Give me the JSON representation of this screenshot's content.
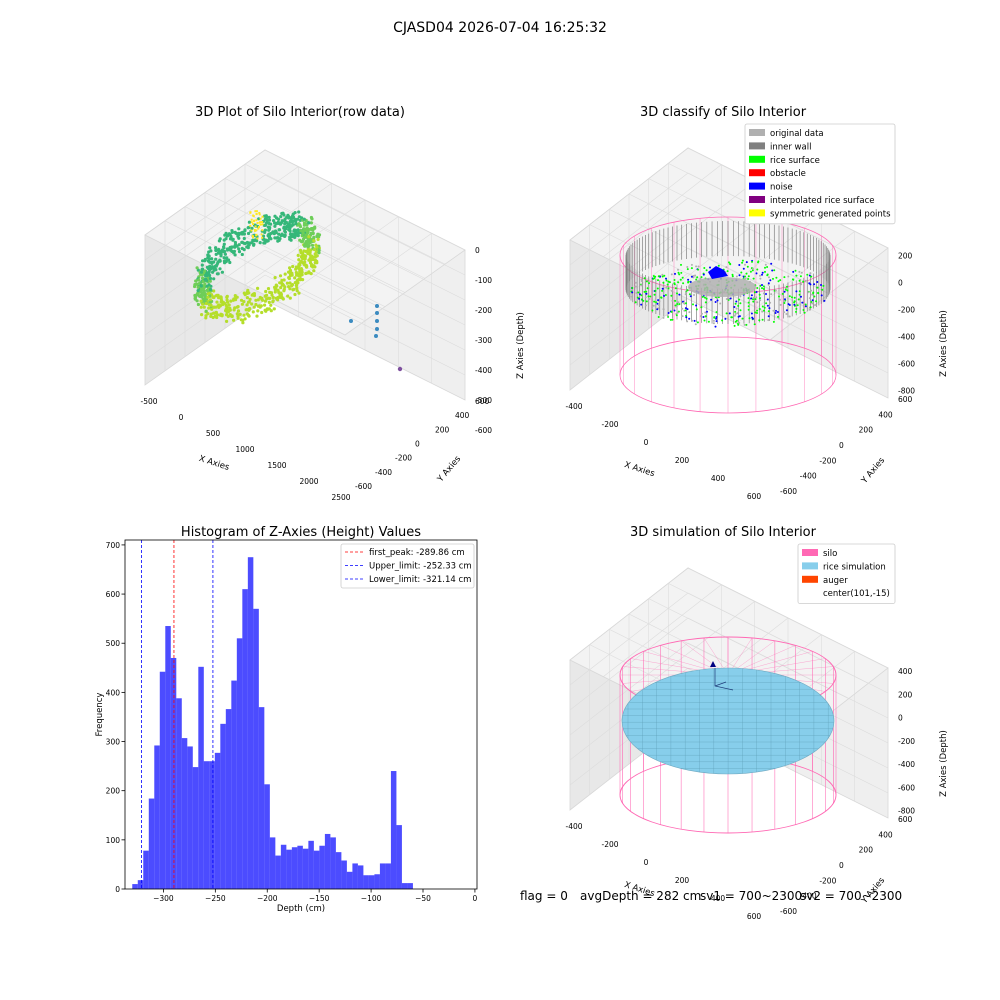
{
  "suptitle": "CJASD04 2026-07-04 16:25:32",
  "colors": {
    "hist_bar": "#0000ff",
    "first_peak_line": "#ff0000",
    "limit_line": "#0000ff",
    "silo": "#ff69b4",
    "rice_simulation": "#87ceeb",
    "auger": "#ff4500",
    "original_data": "#b0b0b0",
    "inner_wall": "#808080",
    "rice_surface": "#00ff00",
    "obstacle": "#ff0000",
    "noise": "#0000ff",
    "interpolated_rice_surface": "#800080",
    "symmetric_generated_points": "#ffff00"
  },
  "footer": {
    "flag": "flag = 0",
    "avg_depth": "avgDepth = 282 cm",
    "sv1": "sv1 = 700~2300",
    "sv2": "sv2 = 700~2300"
  },
  "chart_data": [
    {
      "type": "scatter",
      "title": "3D Plot of Silo Interior(row data)",
      "xlabel": "X Axies",
      "ylabel": "Y Axies",
      "zlabel": "Z Axies (Depth)",
      "x_ticks": [
        "-500",
        "0",
        "500",
        "1000",
        "1500",
        "2000",
        "2500"
      ],
      "y_ticks": [
        "-600",
        "-400",
        "-200",
        "0",
        "200",
        "400",
        "600"
      ],
      "z_ticks": [
        "0",
        "-100",
        "-200",
        "-300",
        "-400",
        "-500",
        "-600"
      ],
      "xlim": [
        -600,
        2500
      ],
      "ylim": [
        -650,
        650
      ],
      "zlim": [
        -650,
        0
      ]
    },
    {
      "type": "scatter",
      "title": "3D classify of Silo Interior",
      "xlabel": "X Axies",
      "ylabel": "Y Axies",
      "zlabel": "Z Axies (Depth)",
      "x_ticks": [
        "-400",
        "-200",
        "0",
        "200",
        "400",
        "600"
      ],
      "y_ticks": [
        "-600",
        "-400",
        "-200",
        "0",
        "200",
        "400",
        "600"
      ],
      "z_ticks": [
        "200",
        "0",
        "-200",
        "-400",
        "-600",
        "-800"
      ],
      "legend": {
        "location": "top-right",
        "entries": [
          {
            "label": "original data",
            "color_key": "original_data"
          },
          {
            "label": "inner wall",
            "color_key": "inner_wall"
          },
          {
            "label": "rice surface",
            "color_key": "rice_surface"
          },
          {
            "label": "obstacle",
            "color_key": "obstacle"
          },
          {
            "label": "noise",
            "color_key": "noise"
          },
          {
            "label": "interpolated rice surface",
            "color_key": "interpolated_rice_surface"
          },
          {
            "label": "symmetric generated points",
            "color_key": "symmetric_generated_points"
          }
        ]
      }
    },
    {
      "type": "bar",
      "title": "Histogram of Z-Axies (Height) Values",
      "xlabel": "Depth (cm)",
      "ylabel": "Frequency",
      "xlim": [
        -337,
        2
      ],
      "ylim": [
        0,
        710
      ],
      "x_ticks": [
        -300,
        -250,
        -200,
        -150,
        -100,
        -50,
        0
      ],
      "y_ticks": [
        0,
        100,
        200,
        300,
        400,
        500,
        600,
        700
      ],
      "bin_start": -330,
      "bin_width": 5.3,
      "values": [
        10,
        18,
        78,
        184,
        292,
        442,
        535,
        470,
        388,
        307,
        290,
        248,
        452,
        260,
        260,
        277,
        336,
        366,
        424,
        510,
        610,
        675,
        570,
        370,
        213,
        105,
        68,
        90,
        80,
        85,
        88,
        82,
        98,
        78,
        88,
        112,
        105,
        75,
        58,
        35,
        52,
        48,
        28,
        28,
        30,
        52,
        52,
        240,
        130,
        12,
        12
      ],
      "vlines": [
        {
          "x": -289.86,
          "label": "first_peak: -289.86 cm",
          "color_key": "first_peak_line"
        },
        {
          "x": -252.33,
          "label": "Upper_limit: -252.33 cm",
          "color_key": "limit_line"
        },
        {
          "x": -321.14,
          "label": "Lower_limit: -321.14 cm",
          "color_key": "limit_line"
        }
      ],
      "legend": {
        "location": "top-right"
      }
    },
    {
      "type": "scatter",
      "title": "3D simulation of Silo Interior",
      "xlabel": "X Axies",
      "ylabel": "Y Axies",
      "zlabel": "Z Axies (Depth)",
      "x_ticks": [
        "-400",
        "-200",
        "0",
        "200",
        "400",
        "600"
      ],
      "y_ticks": [
        "-600",
        "-400",
        "-200",
        "0",
        "200",
        "400",
        "600"
      ],
      "z_ticks": [
        "400",
        "200",
        "0",
        "-200",
        "-400",
        "-600",
        "-800"
      ],
      "legend": {
        "location": "top-right",
        "entries": [
          {
            "label": "silo",
            "color_key": "silo"
          },
          {
            "label": "rice simulation",
            "color_key": "rice_simulation"
          },
          {
            "label": "auger",
            "color_key": "auger"
          },
          {
            "label": "center(101,-15)",
            "color_key": ""
          }
        ]
      }
    }
  ]
}
